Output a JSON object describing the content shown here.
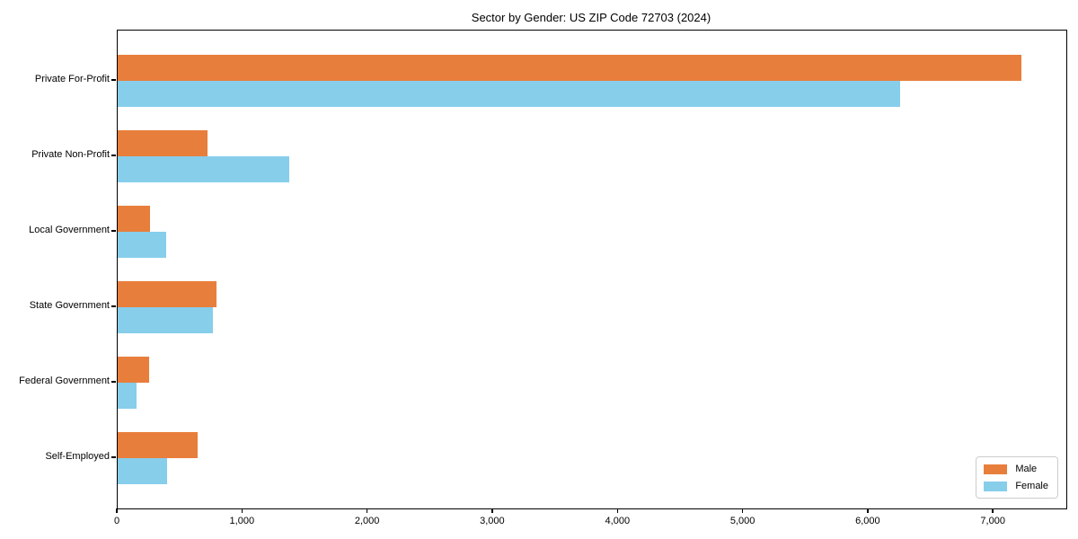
{
  "chart_data": {
    "type": "bar",
    "orientation": "horizontal",
    "title": "Sector by Gender: US ZIP Code 72703 (2024)",
    "categories": [
      "Private For-Profit",
      "Private Non-Profit",
      "Local Government",
      "State Government",
      "Federal Government",
      "Self-Employed"
    ],
    "series": [
      {
        "name": "Male",
        "color": "#e87e3c",
        "values": [
          7220,
          720,
          260,
          790,
          250,
          640
        ]
      },
      {
        "name": "Female",
        "color": "#87ceeb",
        "values": [
          6250,
          1370,
          385,
          760,
          150,
          395
        ]
      }
    ],
    "xlabel": "",
    "ylabel": "",
    "xlim": [
      0,
      7580
    ],
    "x_ticks": [
      0,
      1000,
      2000,
      3000,
      4000,
      5000,
      6000,
      7000
    ],
    "x_tick_labels": [
      "0",
      "1,000",
      "2,000",
      "3,000",
      "4,000",
      "5,000",
      "6,000",
      "7,000"
    ],
    "grid": false,
    "legend": {
      "position": "lower right",
      "entries": [
        "Male",
        "Female"
      ]
    }
  }
}
